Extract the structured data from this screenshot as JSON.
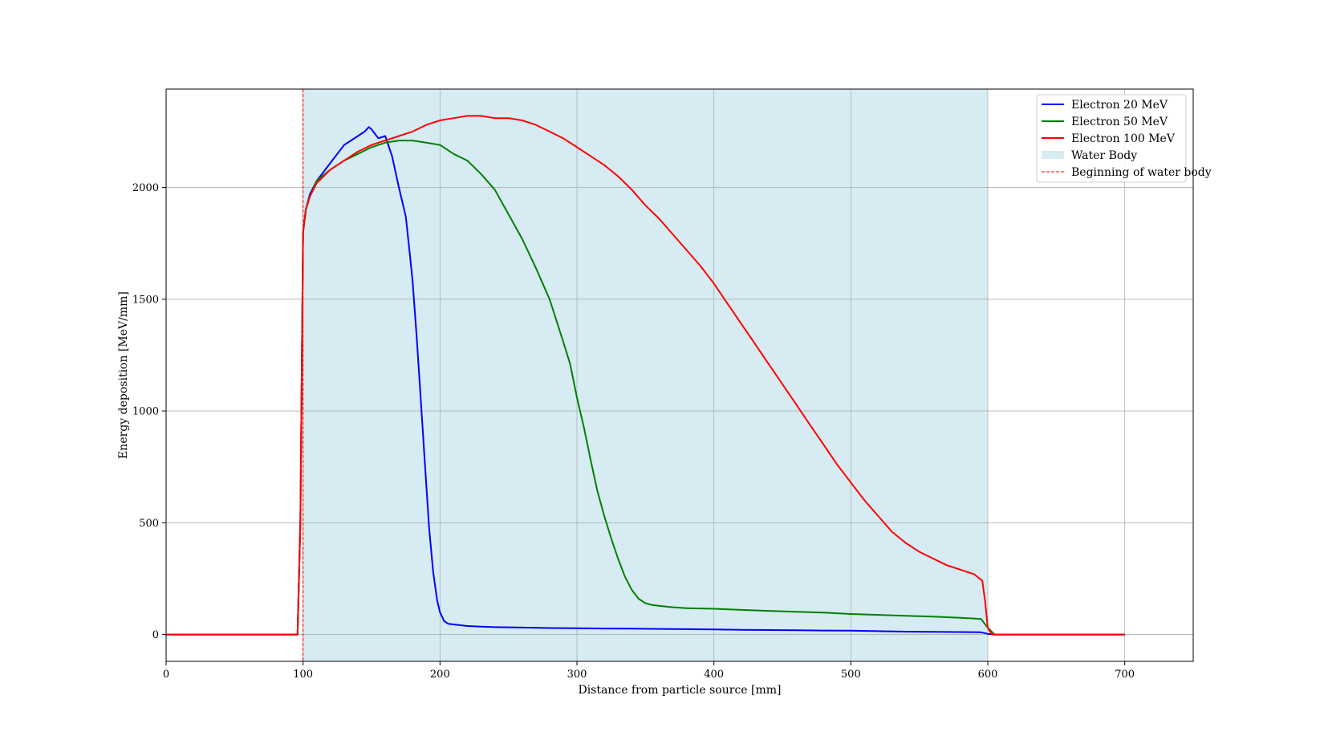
{
  "chart_data": {
    "type": "line",
    "title": "",
    "xlabel": "Distance from particle source [mm]",
    "ylabel": "Energy deposition [MeV/mm]",
    "xlim": [
      0,
      750
    ],
    "ylim": [
      -120,
      2440
    ],
    "xticks": [
      0,
      100,
      200,
      300,
      400,
      500,
      600,
      700
    ],
    "yticks": [
      0,
      500,
      1000,
      1500,
      2000
    ],
    "grid": true,
    "legend_position": "upper right",
    "water_body": {
      "label": "Water Body",
      "x_range": [
        100,
        600
      ],
      "color": "#add8e6"
    },
    "water_start_line": {
      "label": "Beginning of water body",
      "x": 100,
      "color": "#ff0000",
      "style": "dashed"
    },
    "series": [
      {
        "name": "Electron 20 MeV",
        "color": "#0000ff",
        "x": [
          0,
          96,
          98,
          100,
          102,
          105,
          110,
          115,
          120,
          125,
          130,
          135,
          140,
          145,
          148,
          150,
          155,
          160,
          165,
          170,
          175,
          178,
          180,
          183,
          186,
          189,
          192,
          195,
          198,
          200,
          203,
          206,
          210,
          220,
          230,
          240,
          260,
          280,
          300,
          320,
          340,
          360,
          380,
          400,
          420,
          440,
          460,
          480,
          500,
          520,
          540,
          560,
          580,
          595,
          600,
          605,
          700
        ],
        "y": [
          0,
          0,
          500,
          1800,
          1900,
          1970,
          2030,
          2070,
          2110,
          2150,
          2190,
          2210,
          2230,
          2250,
          2270,
          2260,
          2220,
          2230,
          2140,
          2000,
          1870,
          1700,
          1580,
          1330,
          1050,
          760,
          480,
          280,
          150,
          100,
          60,
          48,
          45,
          38,
          35,
          33,
          31,
          29,
          28,
          27,
          26,
          25,
          24,
          23,
          21,
          20,
          19,
          18,
          17,
          15,
          13,
          12,
          11,
          10,
          3,
          0,
          0
        ]
      },
      {
        "name": "Electron 50 MeV",
        "color": "#008000",
        "x": [
          0,
          96,
          98,
          100,
          102,
          105,
          110,
          120,
          130,
          140,
          150,
          160,
          170,
          180,
          190,
          200,
          210,
          220,
          230,
          240,
          250,
          260,
          270,
          280,
          290,
          295,
          300,
          305,
          310,
          315,
          320,
          325,
          330,
          335,
          340,
          345,
          350,
          355,
          360,
          370,
          380,
          400,
          420,
          440,
          460,
          480,
          500,
          520,
          540,
          560,
          580,
          595,
          600,
          605,
          700
        ],
        "y": [
          0,
          0,
          500,
          1800,
          1900,
          1960,
          2030,
          2080,
          2120,
          2150,
          2180,
          2200,
          2210,
          2210,
          2200,
          2190,
          2150,
          2120,
          2060,
          1990,
          1880,
          1770,
          1640,
          1500,
          1310,
          1210,
          1060,
          930,
          780,
          640,
          530,
          430,
          340,
          260,
          200,
          160,
          140,
          132,
          128,
          122,
          118,
          115,
          110,
          106,
          102,
          98,
          92,
          88,
          84,
          80,
          75,
          70,
          30,
          0,
          0
        ]
      },
      {
        "name": "Electron 100 MeV",
        "color": "#ff0000",
        "x": [
          0,
          96,
          98,
          100,
          102,
          105,
          110,
          120,
          130,
          140,
          150,
          160,
          170,
          180,
          190,
          200,
          210,
          220,
          230,
          240,
          250,
          260,
          270,
          280,
          290,
          300,
          310,
          320,
          330,
          340,
          350,
          360,
          370,
          380,
          390,
          400,
          410,
          420,
          430,
          440,
          450,
          460,
          470,
          480,
          490,
          500,
          510,
          520,
          530,
          540,
          550,
          560,
          570,
          580,
          590,
          596,
          598,
          600,
          603,
          700
        ],
        "y": [
          0,
          0,
          500,
          1800,
          1900,
          1960,
          2020,
          2080,
          2120,
          2160,
          2190,
          2210,
          2230,
          2250,
          2280,
          2300,
          2310,
          2320,
          2320,
          2310,
          2310,
          2300,
          2280,
          2250,
          2220,
          2180,
          2140,
          2100,
          2050,
          1990,
          1920,
          1860,
          1790,
          1720,
          1650,
          1570,
          1480,
          1390,
          1300,
          1210,
          1120,
          1030,
          940,
          850,
          760,
          680,
          600,
          530,
          460,
          410,
          370,
          340,
          310,
          290,
          270,
          240,
          150,
          30,
          0,
          0
        ]
      }
    ]
  }
}
